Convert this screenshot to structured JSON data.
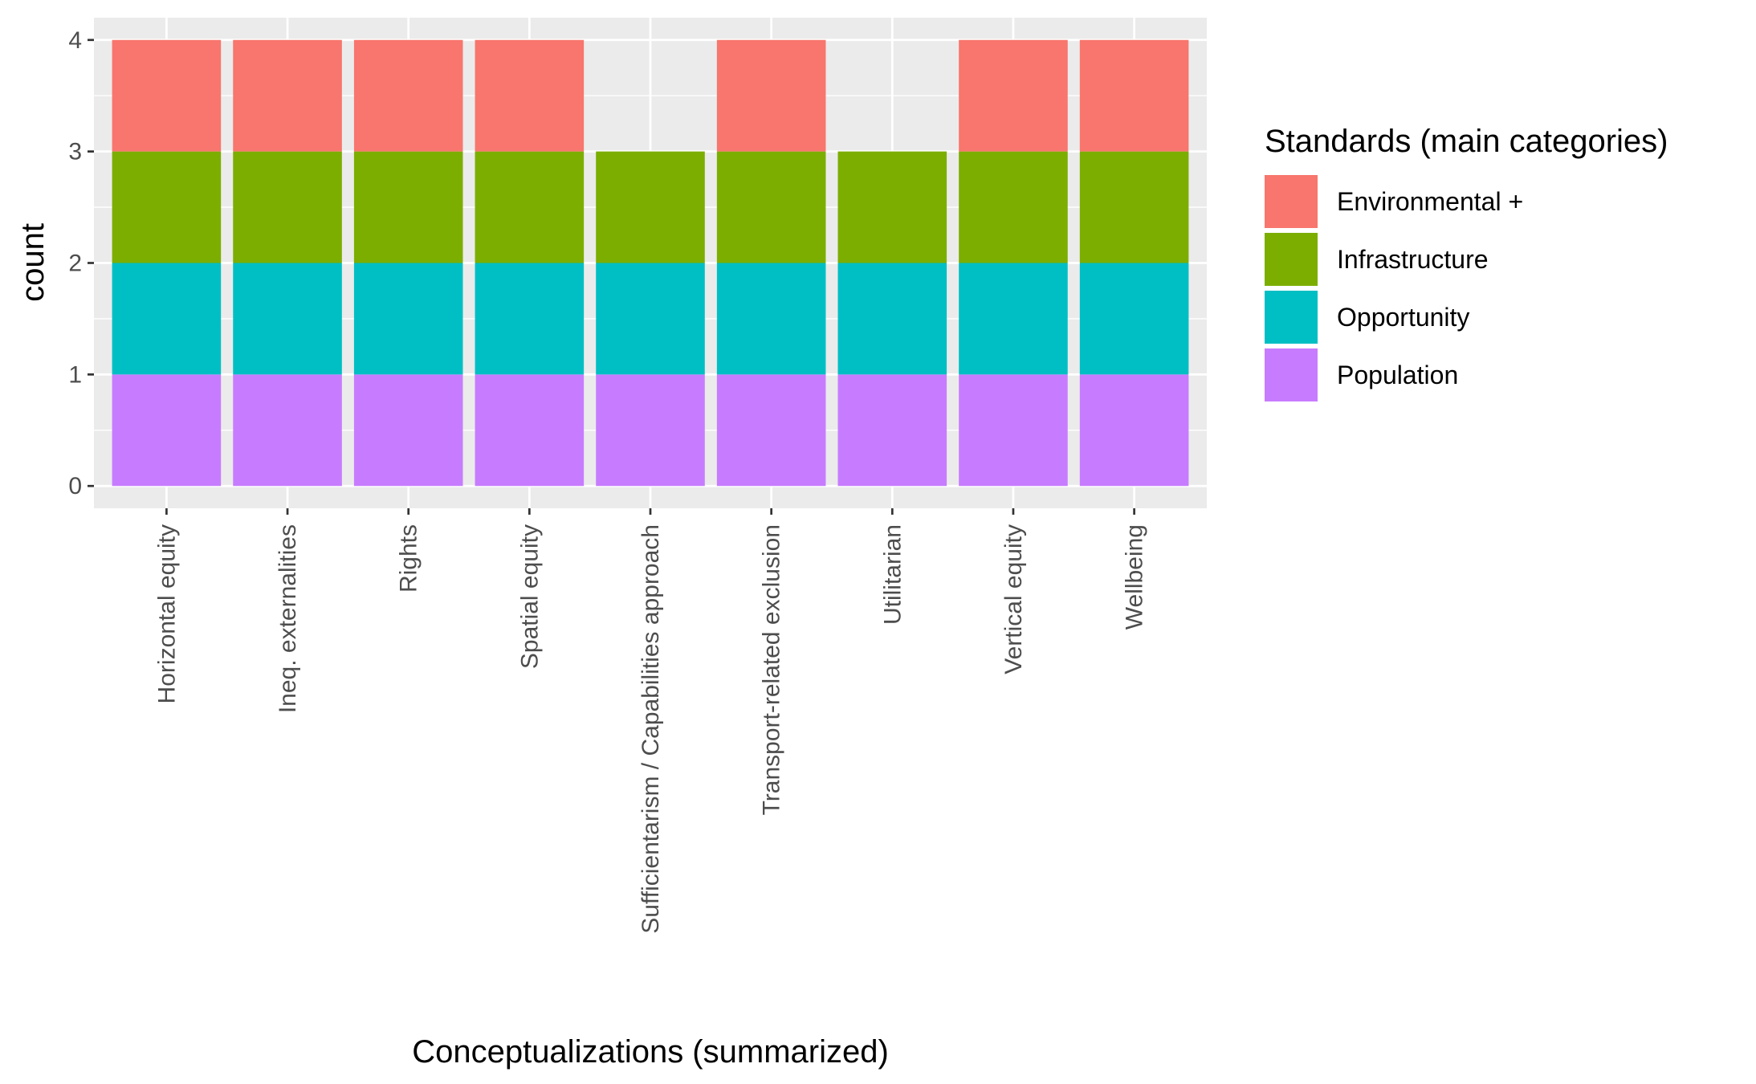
{
  "chart_data": {
    "type": "bar",
    "stacked": true,
    "title": "",
    "xlabel": "Conceptualizations (summarized)",
    "ylabel": "count",
    "ylim": [
      0,
      4
    ],
    "y_ticks": [
      0,
      1,
      2,
      3,
      4
    ],
    "y_tick_labels": [
      "0",
      "1",
      "2",
      "3",
      "4"
    ],
    "grid": true,
    "legend_position": "right",
    "legend_title": "Standards (main categories)",
    "categories": [
      "Horizontal equity",
      "Ineq. externalities",
      "Rights",
      "Spatial equity",
      "Sufficientarism / Capabilities approach",
      "Transport-related exclusion",
      "Utilitarian",
      "Vertical equity",
      "Wellbeing"
    ],
    "series": [
      {
        "name": "Population",
        "color": "#C77CFF",
        "values": [
          1,
          1,
          1,
          1,
          1,
          1,
          1,
          1,
          1
        ]
      },
      {
        "name": "Opportunity",
        "color": "#00BFC4",
        "values": [
          1,
          1,
          1,
          1,
          1,
          1,
          1,
          1,
          1
        ]
      },
      {
        "name": "Infrastructure",
        "color": "#7CAE00",
        "values": [
          1,
          1,
          1,
          1,
          1,
          1,
          1,
          1,
          1
        ]
      },
      {
        "name": "Environmental +",
        "color": "#F8766D",
        "values": [
          1,
          1,
          1,
          1,
          0,
          1,
          0,
          1,
          1
        ]
      }
    ],
    "legend_order": [
      "Environmental +",
      "Infrastructure",
      "Opportunity",
      "Population"
    ]
  }
}
